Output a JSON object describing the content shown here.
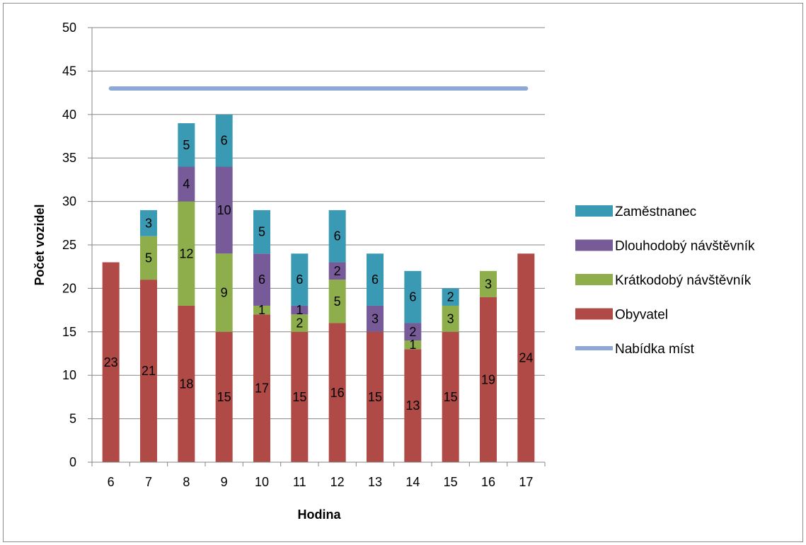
{
  "chart_data": {
    "type": "bar",
    "stacked": true,
    "categories": [
      "6",
      "7",
      "8",
      "9",
      "10",
      "11",
      "12",
      "13",
      "14",
      "15",
      "16",
      "17"
    ],
    "series": [
      {
        "name": "Obyvatel",
        "color": "#b04a47",
        "values": [
          23,
          21,
          18,
          15,
          17,
          15,
          16,
          15,
          13,
          15,
          19,
          24
        ]
      },
      {
        "name": "Krátkodobý návštěvník",
        "color": "#8eae4b",
        "values": [
          0,
          5,
          12,
          9,
          1,
          2,
          5,
          0,
          1,
          3,
          3,
          0
        ]
      },
      {
        "name": "Dlouhodobý návštěvník",
        "color": "#775b99",
        "values": [
          0,
          0,
          4,
          10,
          6,
          1,
          2,
          3,
          2,
          0,
          0,
          0
        ]
      },
      {
        "name": "Zaměstnanec",
        "color": "#3b9ab3",
        "values": [
          0,
          3,
          5,
          6,
          5,
          6,
          6,
          6,
          6,
          2,
          0,
          0
        ]
      }
    ],
    "line": {
      "name": "Nabídka míst",
      "color": "#8da8d6",
      "value": 43
    },
    "xlabel": "Hodina",
    "ylabel": "Počet vozidel",
    "ylim": [
      0,
      50
    ],
    "yticks": [
      "0",
      "5",
      "10",
      "15",
      "20",
      "25",
      "30",
      "35",
      "40",
      "45",
      "50"
    ],
    "grid": true,
    "legend_position": "right",
    "legend_order": [
      "Zaměstnanec",
      "Dlouhodobý návštěvník",
      "Krátkodobý návštěvník",
      "Obyvatel",
      "Nabídka míst"
    ]
  }
}
